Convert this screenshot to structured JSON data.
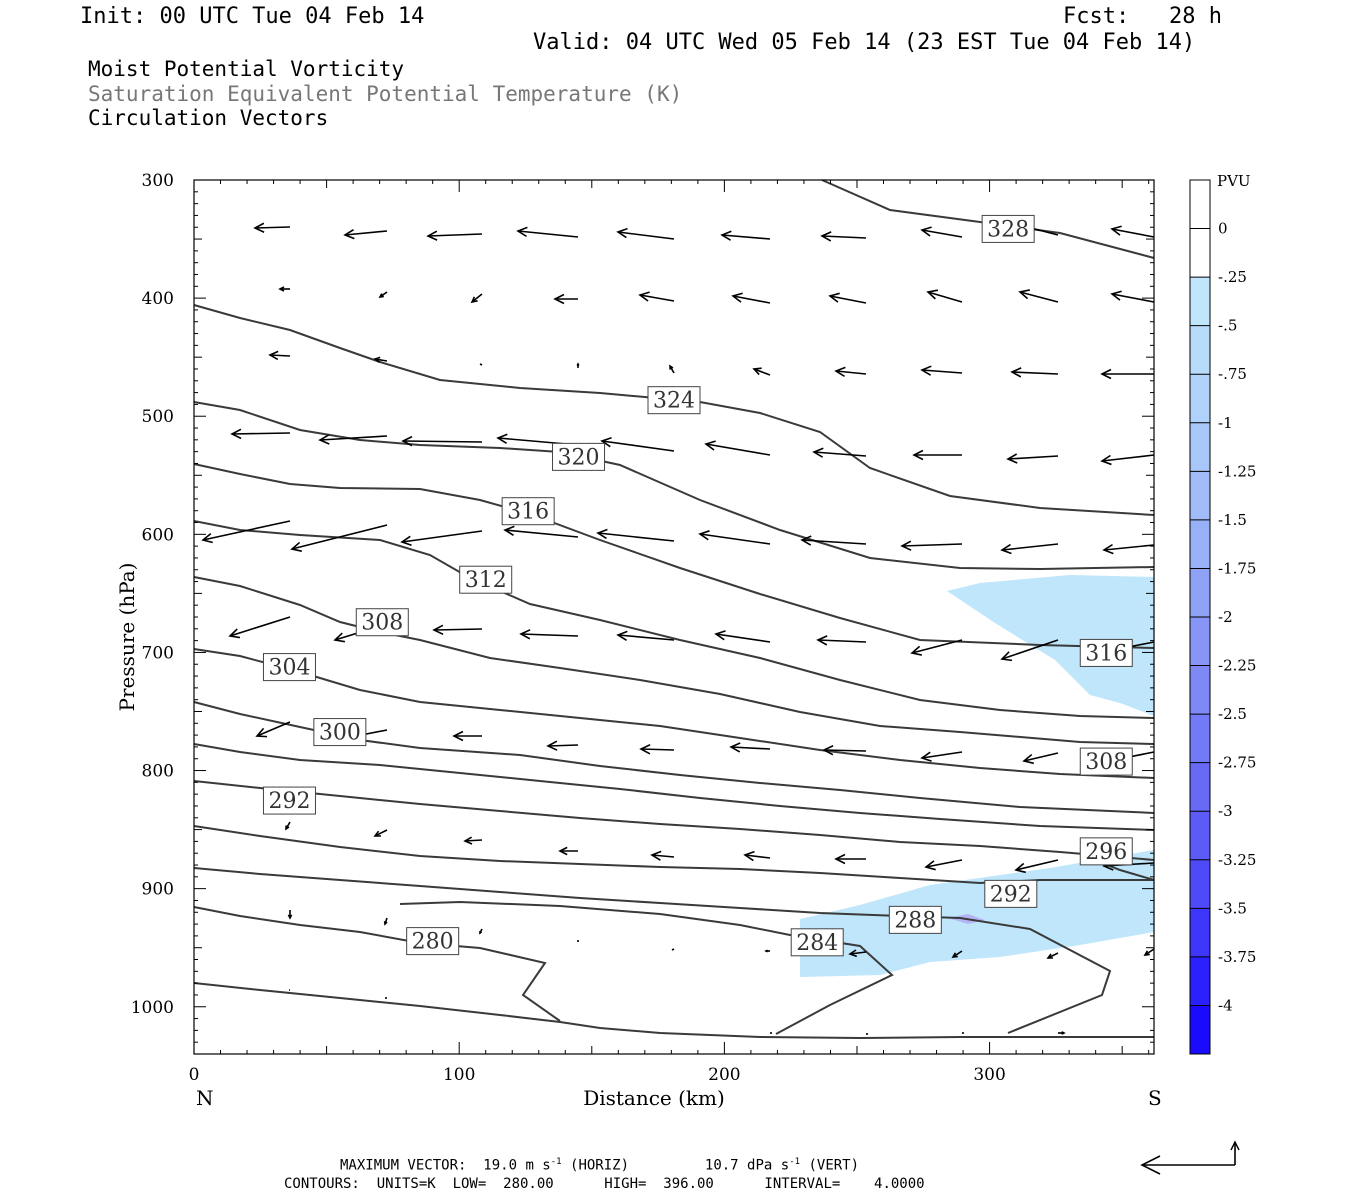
{
  "header": {
    "init": "Init: 00 UTC Tue 04 Feb 14",
    "fcst": "Fcst:   28 h",
    "valid": "Valid: 04 UTC Wed 05 Feb 14 (23 EST Tue 04 Feb 14)"
  },
  "fields": {
    "shaded": "Moist Potential Vorticity",
    "contours": "Saturation Equivalent Potential Temperature (K)",
    "vectors": "Circulation Vectors"
  },
  "footer": {
    "line1": "MAXIMUM VECTOR:  19.0 m s^-1 (HORIZ)        10.7 dPa s^-1 (VERT)",
    "max_horiz": "19.0 m s",
    "max_horiz_unit": "(HORIZ)",
    "max_vert": "10.7 dPa s",
    "max_vert_unit": "(VERT)",
    "line2": "CONTOURS:  UNITS=K  LOW=  280.00      HIGH=  396.00      INTERVAL=    4.0000"
  },
  "colors": {
    "contour": "#3a3a3a",
    "shade_light": "#bfe6fb",
    "shade_mid": "#b4b4f4",
    "arrow": "#000000"
  },
  "chart_data": {
    "type": "cross-section",
    "xlabel": "Distance (km)",
    "ylabel": "Pressure (hPa)",
    "x_ticks": [
      0,
      100,
      200,
      300
    ],
    "y_ticks": [
      300,
      400,
      500,
      600,
      700,
      800,
      900,
      1000
    ],
    "xlim": [
      0,
      362
    ],
    "ylim": [
      1040,
      300
    ],
    "x_end_labels": {
      "left": "N",
      "right": "S"
    },
    "contour_levels": [
      280,
      284,
      288,
      292,
      296,
      300,
      304,
      308,
      312,
      316,
      320,
      324,
      328
    ],
    "contour_labels": [
      {
        "text": "328",
        "x": 307,
        "p": 341
      },
      {
        "text": "324",
        "x": 181,
        "p": 486
      },
      {
        "text": "320",
        "x": 145,
        "p": 534
      },
      {
        "text": "316",
        "x": 126,
        "p": 580
      },
      {
        "text": "312",
        "x": 110,
        "p": 638
      },
      {
        "text": "308",
        "x": 71,
        "p": 674
      },
      {
        "text": "304",
        "x": 36,
        "p": 712
      },
      {
        "text": "300",
        "x": 55,
        "p": 767
      },
      {
        "text": "292",
        "x": 36,
        "p": 825
      },
      {
        "text": "280",
        "x": 90,
        "p": 944
      },
      {
        "text": "284",
        "x": 235,
        "p": 945
      },
      {
        "text": "288",
        "x": 272,
        "p": 926
      },
      {
        "text": "292",
        "x": 308,
        "p": 904
      },
      {
        "text": "296",
        "x": 344,
        "p": 868
      },
      {
        "text": "308",
        "x": 344,
        "p": 792
      },
      {
        "text": "316",
        "x": 344,
        "p": 700
      }
    ],
    "colorbar": {
      "title": "PVU",
      "labels": [
        "0",
        "-.25",
        "-.5",
        "-.75",
        "-1",
        "-1.25",
        "-1.5",
        "-1.75",
        "-2",
        "-2.25",
        "-2.5",
        "-2.75",
        "-3",
        "-3.25",
        "-3.5",
        "-3.75",
        "-4"
      ],
      "colors": [
        "#ffffff",
        "#ffffff",
        "#bfe6fb",
        "#b7dcfa",
        "#b0d1f9",
        "#a8c6f8",
        "#a0bbf7",
        "#98b0f7",
        "#8fa3f6",
        "#8796f6",
        "#7e89f6",
        "#737af6",
        "#686af6",
        "#5c5bf7",
        "#4e4af8",
        "#3d36f9",
        "#2a20fb",
        "#1a0bfd"
      ]
    }
  }
}
